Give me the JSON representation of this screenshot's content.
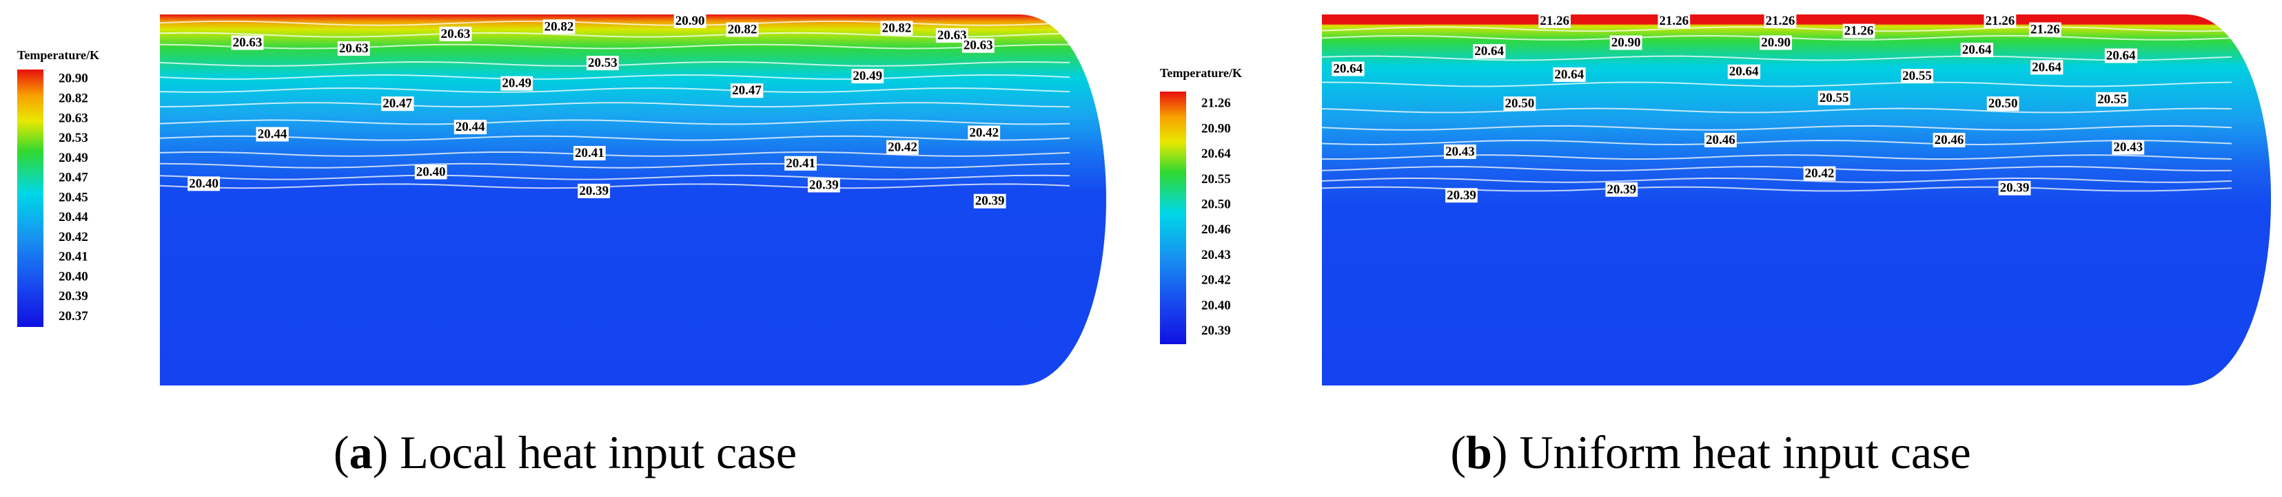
{
  "panels": [
    {
      "colorbar": {
        "title": "Temperature/K",
        "ticks": [
          "20.90",
          "20.82",
          "20.63",
          "20.53",
          "20.49",
          "20.47",
          "20.45",
          "20.44",
          "20.42",
          "20.41",
          "20.40",
          "20.39",
          "20.37"
        ]
      },
      "contour_labels": [
        "20.63",
        "20.63",
        "20.63",
        "20.82",
        "20.90",
        "20.82",
        "20.82",
        "20.63",
        "20.63",
        "20.53",
        "20.49",
        "20.49",
        "20.47",
        "20.47",
        "20.44",
        "20.44",
        "20.41",
        "20.41",
        "20.42",
        "20.42",
        "20.40",
        "20.40",
        "20.39",
        "20.39",
        "20.39"
      ],
      "caption": {
        "parts": [
          "(",
          "a",
          ") Local heat input case"
        ]
      }
    },
    {
      "colorbar": {
        "title": "Temperature/K",
        "ticks": [
          "21.26",
          "20.90",
          "20.64",
          "20.55",
          "20.50",
          "20.46",
          "20.43",
          "20.42",
          "20.40",
          "20.39"
        ]
      },
      "contour_labels": [
        "21.26",
        "21.26",
        "21.26",
        "21.26",
        "21.26",
        "21.26",
        "20.90",
        "20.90",
        "20.64",
        "20.64",
        "20.64",
        "20.64",
        "20.64",
        "20.64",
        "20.64",
        "20.55",
        "20.55",
        "20.55",
        "20.50",
        "20.50",
        "20.46",
        "20.46",
        "20.43",
        "20.43",
        "20.42",
        "20.39",
        "20.39",
        "20.39"
      ],
      "caption": {
        "parts": [
          "(",
          "b",
          ") Uniform heat input case"
        ]
      }
    }
  ]
}
